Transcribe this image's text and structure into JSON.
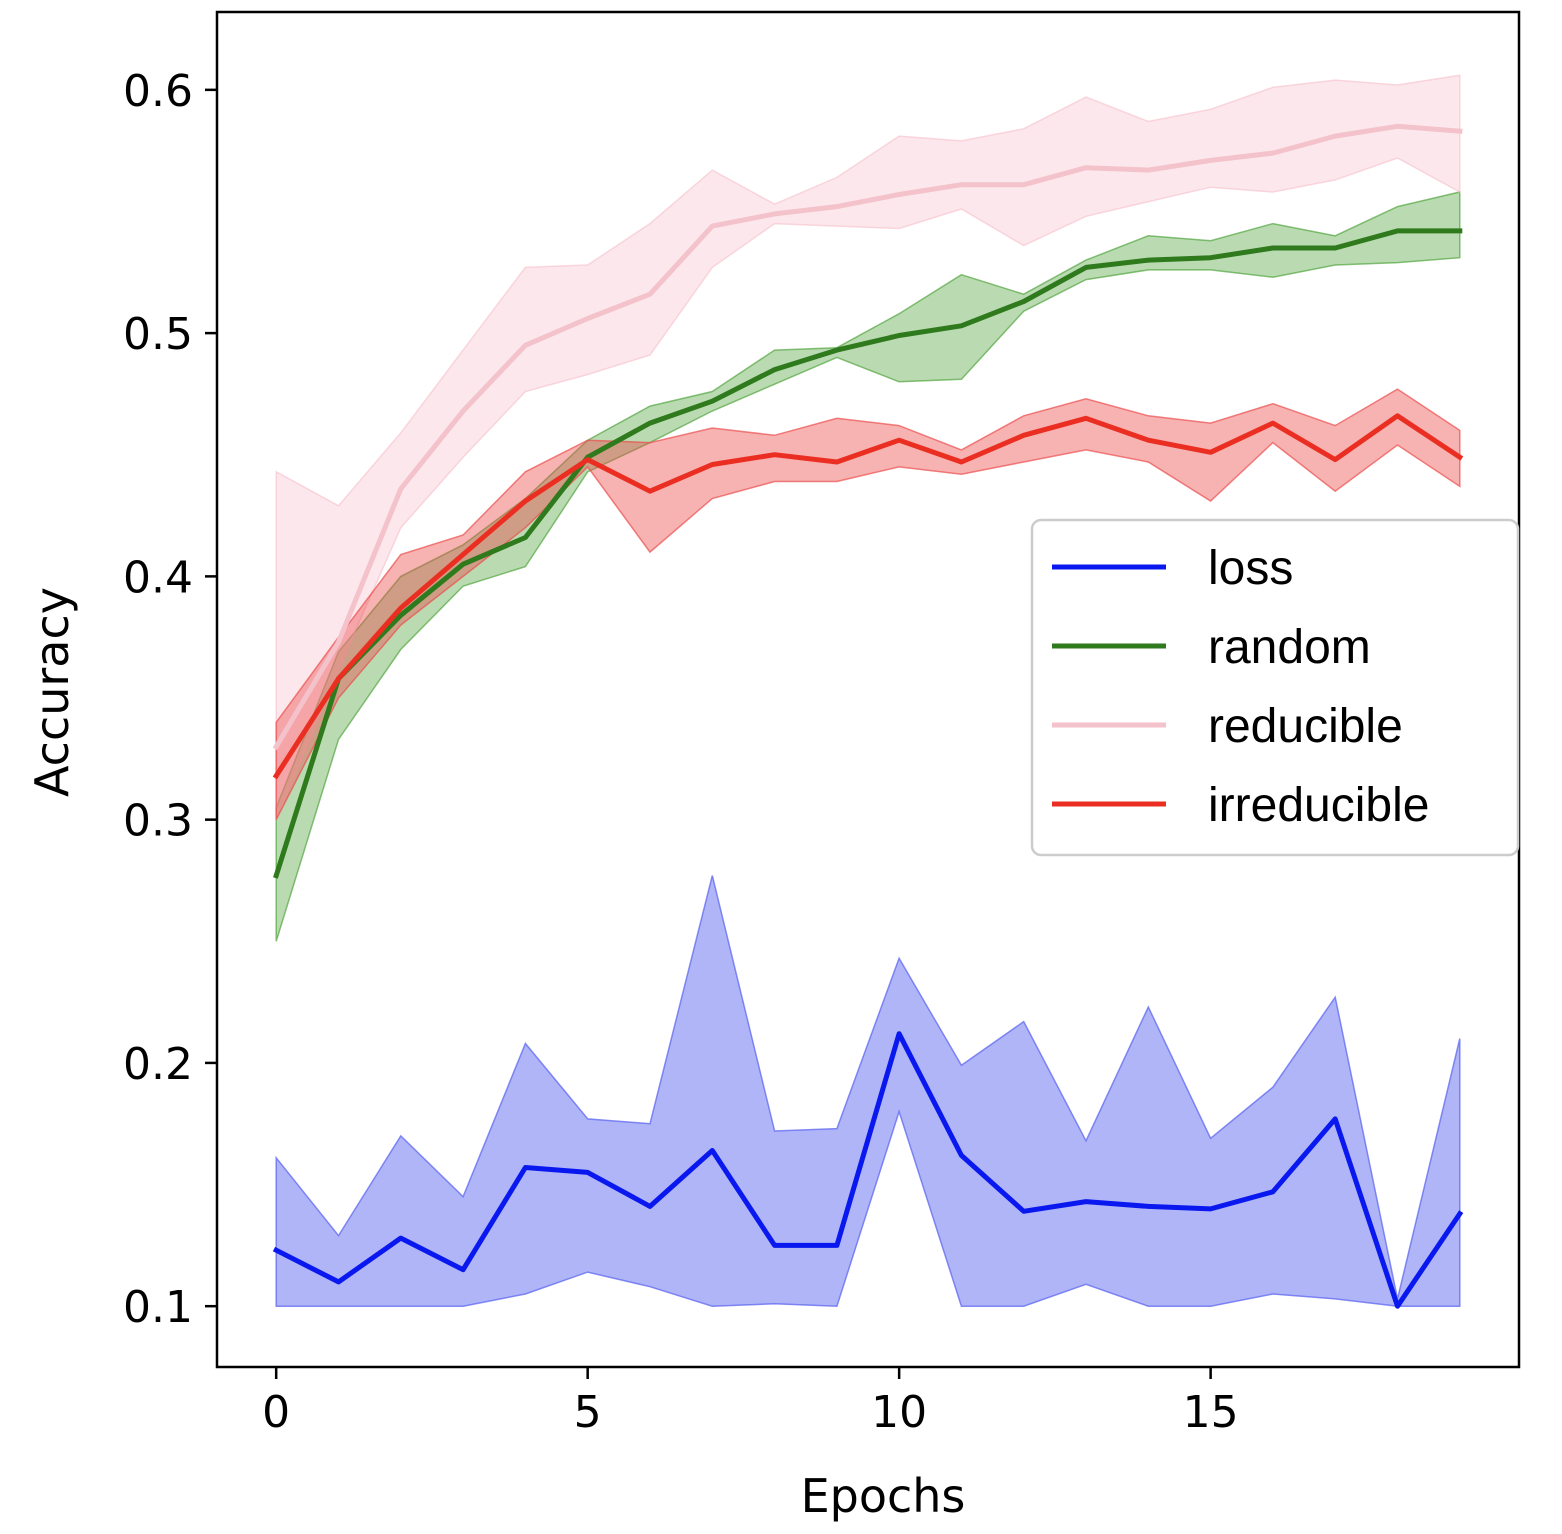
{
  "chart_data": {
    "type": "line",
    "xlabel": "Epochs",
    "ylabel": "Accuracy",
    "xlim": [
      -0.95,
      19.95
    ],
    "ylim": [
      0.075,
      0.632
    ],
    "xticks": [
      0,
      5,
      10,
      15
    ],
    "yticks": [
      0.1,
      0.2,
      0.3,
      0.4,
      0.5,
      0.6
    ],
    "xtick_labels": [
      "0",
      "5",
      "10",
      "15"
    ],
    "ytick_labels": [
      "0.1",
      "0.2",
      "0.3",
      "0.4",
      "0.5",
      "0.6"
    ],
    "grid": false,
    "legend_position": "center-right",
    "x": [
      0,
      1,
      2,
      3,
      4,
      5,
      6,
      7,
      8,
      9,
      10,
      11,
      12,
      13,
      14,
      15,
      16,
      17,
      18,
      19
    ],
    "series": [
      {
        "name": "loss",
        "color": "#0a18f0",
        "band_color": "#5a64f0",
        "band_opacity": 0.48,
        "line_opacity": 1,
        "values": [
          0.123,
          0.11,
          0.128,
          0.115,
          0.157,
          0.155,
          0.141,
          0.164,
          0.125,
          0.125,
          0.212,
          0.162,
          0.139,
          0.143,
          0.141,
          0.14,
          0.147,
          0.177,
          0.1,
          0.138
        ],
        "lower": [
          0.1,
          0.1,
          0.1,
          0.1,
          0.105,
          0.114,
          0.108,
          0.1,
          0.101,
          0.1,
          0.18,
          0.1,
          0.1,
          0.109,
          0.1,
          0.1,
          0.105,
          0.103,
          0.1,
          0.1
        ],
        "upper": [
          0.161,
          0.129,
          0.17,
          0.145,
          0.208,
          0.177,
          0.175,
          0.277,
          0.172,
          0.173,
          0.243,
          0.199,
          0.217,
          0.168,
          0.223,
          0.169,
          0.19,
          0.227,
          0.103,
          0.21
        ]
      },
      {
        "name": "random",
        "color": "#2e7a1c",
        "band_color": "#3f9c2a",
        "band_opacity": 0.36,
        "line_opacity": 1,
        "values": [
          0.277,
          0.358,
          0.384,
          0.405,
          0.416,
          0.449,
          0.463,
          0.472,
          0.485,
          0.493,
          0.499,
          0.503,
          0.513,
          0.527,
          0.53,
          0.531,
          0.535,
          0.535,
          0.542,
          0.542
        ],
        "lower": [
          0.25,
          0.333,
          0.37,
          0.396,
          0.404,
          0.443,
          0.455,
          0.468,
          0.479,
          0.49,
          0.48,
          0.481,
          0.509,
          0.522,
          0.526,
          0.526,
          0.523,
          0.528,
          0.529,
          0.531
        ],
        "upper": [
          0.305,
          0.369,
          0.4,
          0.413,
          0.432,
          0.456,
          0.47,
          0.476,
          0.493,
          0.494,
          0.508,
          0.524,
          0.516,
          0.53,
          0.54,
          0.538,
          0.545,
          0.54,
          0.552,
          0.558
        ]
      },
      {
        "name": "reducible",
        "color": "#f4c2cb",
        "band_color": "#f7c0ca",
        "band_opacity": 0.36,
        "line_opacity": 1,
        "values": [
          0.33,
          0.373,
          0.436,
          0.468,
          0.495,
          0.506,
          0.516,
          0.544,
          0.549,
          0.552,
          0.557,
          0.561,
          0.561,
          0.568,
          0.567,
          0.571,
          0.574,
          0.581,
          0.585,
          0.583
        ],
        "lower": [
          0.3,
          0.362,
          0.42,
          0.449,
          0.476,
          0.483,
          0.491,
          0.527,
          0.545,
          0.544,
          0.543,
          0.551,
          0.536,
          0.548,
          0.554,
          0.56,
          0.558,
          0.563,
          0.572,
          0.558
        ],
        "upper": [
          0.443,
          0.429,
          0.459,
          0.493,
          0.527,
          0.528,
          0.545,
          0.567,
          0.553,
          0.564,
          0.581,
          0.579,
          0.584,
          0.597,
          0.587,
          0.592,
          0.601,
          0.604,
          0.602,
          0.606
        ]
      },
      {
        "name": "irreducible",
        "color": "#ea2f22",
        "band_color": "#ec4848",
        "band_opacity": 0.42,
        "line_opacity": 1,
        "values": [
          0.318,
          0.358,
          0.387,
          0.409,
          0.431,
          0.448,
          0.435,
          0.446,
          0.45,
          0.447,
          0.456,
          0.447,
          0.458,
          0.465,
          0.456,
          0.451,
          0.463,
          0.448,
          0.466,
          0.449
        ],
        "lower": [
          0.3,
          0.35,
          0.38,
          0.4,
          0.42,
          0.445,
          0.41,
          0.432,
          0.439,
          0.439,
          0.445,
          0.442,
          0.447,
          0.452,
          0.447,
          0.431,
          0.455,
          0.435,
          0.454,
          0.437
        ],
        "upper": [
          0.34,
          0.375,
          0.409,
          0.417,
          0.443,
          0.456,
          0.455,
          0.461,
          0.458,
          0.465,
          0.462,
          0.452,
          0.466,
          0.473,
          0.466,
          0.463,
          0.471,
          0.462,
          0.477,
          0.46
        ]
      }
    ]
  }
}
